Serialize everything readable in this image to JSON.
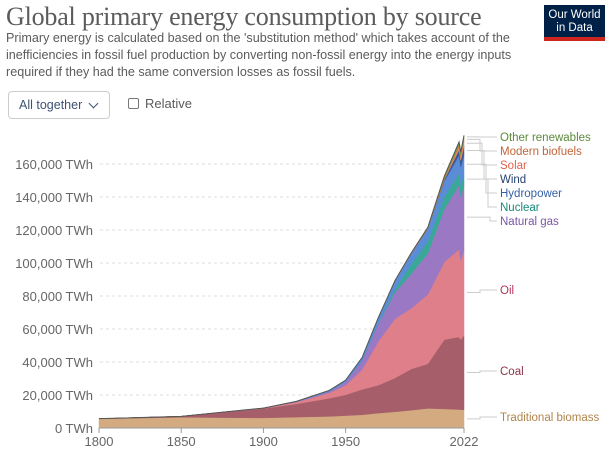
{
  "header": {
    "title": "Global primary energy consumption by source",
    "subtitle": "Primary energy is calculated based on the 'substitution method' which takes account of the inefficiencies in fossil fuel production by converting non-fossil energy into the energy inputs required if they had the same conversion losses as fossil fuels.",
    "logo_line1": "Our World",
    "logo_line2": "in Data"
  },
  "controls": {
    "stack_mode": "All together",
    "relative_label": "Relative",
    "relative_checked": false
  },
  "chart_data": {
    "type": "area",
    "stacked": true,
    "title": "Global primary energy consumption by source",
    "xlabel": "",
    "ylabel": "",
    "xlim": [
      1800,
      2022
    ],
    "ylim": [
      0,
      180000
    ],
    "grid": true,
    "legend": "right-inline",
    "x_ticks": [
      "1800",
      "1850",
      "1900",
      "1950",
      "2022"
    ],
    "y_ticks": [
      "0 TWh",
      "20,000 TWh",
      "40,000 TWh",
      "60,000 TWh",
      "80,000 TWh",
      "100,000 TWh",
      "120,000 TWh",
      "140,000 TWh",
      "160,000 TWh"
    ],
    "x": [
      1800,
      1850,
      1900,
      1920,
      1940,
      1950,
      1960,
      1970,
      1980,
      1990,
      2000,
      2010,
      2019,
      2020,
      2022
    ],
    "series": [
      {
        "name": "Traditional biomass",
        "color": "#d4aa80",
        "label_color": "#b0854e",
        "values": [
          5556,
          6500,
          6111,
          6600,
          7000,
          7500,
          8000,
          9000,
          9800,
          10800,
          11900,
          11600,
          11200,
          11100,
          11111
        ]
      },
      {
        "name": "Coal",
        "color": "#a65f6a",
        "label_color": "#8a3448",
        "values": [
          97,
          570,
          5700,
          8000,
          11000,
          12600,
          15400,
          17000,
          20500,
          25000,
          27000,
          42000,
          44000,
          42500,
          45000
        ]
      },
      {
        "name": "Oil",
        "color": "#df7f89",
        "label_color": "#b1365a",
        "values": [
          0,
          0,
          180,
          1100,
          3300,
          5800,
          12000,
          26600,
          35800,
          36800,
          42000,
          47000,
          53000,
          48000,
          52000
        ]
      },
      {
        "name": "Natural gas",
        "color": "#9a78c4",
        "label_color": "#7a55a8",
        "values": [
          0,
          0,
          64,
          250,
          860,
          2100,
          5300,
          10700,
          16000,
          21000,
          25000,
          32000,
          39000,
          38500,
          39400
        ]
      },
      {
        "name": "Nuclear",
        "color": "#39a896",
        "label_color": "#168a78",
        "values": [
          0,
          0,
          0,
          0,
          0,
          0,
          0,
          300,
          2000,
          5800,
          7300,
          7500,
          7000,
          6800,
          6700
        ]
      },
      {
        "name": "Hydropower",
        "color": "#5a8cd8",
        "label_color": "#3460a8",
        "values": [
          0,
          0,
          13,
          200,
          600,
          1000,
          2000,
          3500,
          5000,
          6400,
          7600,
          9500,
          11000,
          11300,
          11200
        ]
      },
      {
        "name": "Wind",
        "color": "#3b5b96",
        "label_color": "#24406e",
        "values": [
          0,
          0,
          0,
          0,
          0,
          0,
          0,
          0,
          0,
          10,
          80,
          900,
          3500,
          4000,
          5500
        ]
      },
      {
        "name": "Solar",
        "color": "#ef8a66",
        "label_color": "#e0614a",
        "values": [
          0,
          0,
          0,
          0,
          0,
          0,
          0,
          0,
          0,
          1,
          3,
          80,
          1800,
          2200,
          3400
        ]
      },
      {
        "name": "Modern biofuels",
        "color": "#c2803f",
        "label_color": "#c0653a",
        "values": [
          0,
          0,
          0,
          0,
          0,
          0,
          0,
          0,
          20,
          100,
          200,
          1000,
          1300,
          1200,
          1300
        ]
      },
      {
        "name": "Other renewables",
        "color": "#6b9a48",
        "label_color": "#5a8a3a",
        "values": [
          0,
          0,
          0,
          0,
          0,
          0,
          0,
          100,
          200,
          400,
          600,
          1000,
          1600,
          1650,
          1700
        ]
      }
    ]
  }
}
